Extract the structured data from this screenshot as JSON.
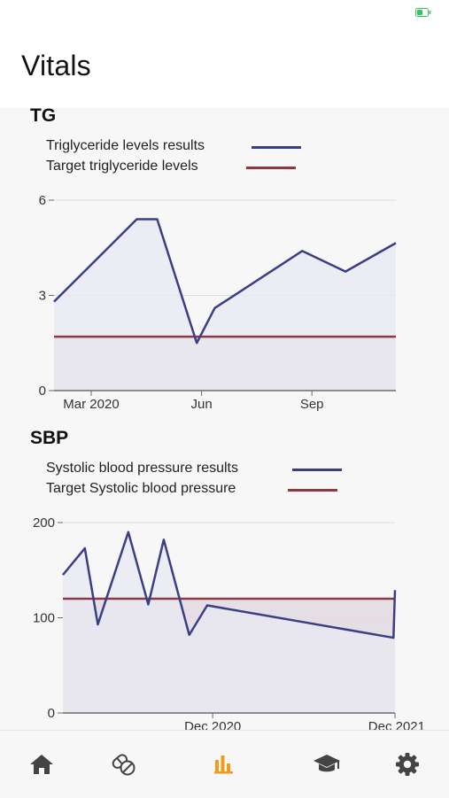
{
  "header": {
    "title": "Vitals"
  },
  "status_bar": {
    "battery_color": "#34c759"
  },
  "colors": {
    "results_line": "#3a3f85",
    "results_fill": "#e8e9f3",
    "target_line": "#8b3a44",
    "target_fill": "#e2dbe2",
    "axis": "#6b6b6b",
    "grid": "#dddddd",
    "nav_icon": "#444444",
    "nav_active": "#f39a1a"
  },
  "sections": [
    {
      "title": "TG",
      "legend": [
        {
          "label": "Triglyceride levels results",
          "color": "#3a3f85"
        },
        {
          "label": "Target triglyceride levels",
          "color": "#8b3a44"
        }
      ]
    },
    {
      "title": "SBP",
      "legend": [
        {
          "label": "Systolic blood pressure results",
          "color": "#3a3f85"
        },
        {
          "label": "Target Systolic blood pressure",
          "color": "#8b3a44"
        }
      ]
    }
  ],
  "chart_data": [
    {
      "type": "area",
      "title": "TG",
      "xlabel": "",
      "ylabel": "",
      "ylim": [
        0,
        6
      ],
      "y_ticks": [
        0,
        3,
        6
      ],
      "x_ticks": [
        {
          "label": "Mar 2020",
          "x": "2020-03-01"
        },
        {
          "label": "Jun",
          "x": "2020-06-01"
        },
        {
          "label": "Sep",
          "x": "2020-09-01"
        }
      ],
      "xlim": [
        "2020-01-30",
        "2020-11-10"
      ],
      "grid": true,
      "legend": "top-left",
      "series": [
        {
          "name": "Triglyceride levels results",
          "color": "#3a3f85",
          "points": [
            {
              "x": "2020-01-30",
              "y": 2.8
            },
            {
              "x": "2020-04-08",
              "y": 5.4
            },
            {
              "x": "2020-04-25",
              "y": 5.4
            },
            {
              "x": "2020-05-28",
              "y": 1.5
            },
            {
              "x": "2020-06-12",
              "y": 2.6
            },
            {
              "x": "2020-08-24",
              "y": 4.4
            },
            {
              "x": "2020-09-29",
              "y": 3.75
            },
            {
              "x": "2020-11-10",
              "y": 4.65
            }
          ]
        },
        {
          "name": "Target triglyceride levels",
          "color": "#8b3a44",
          "points": [
            {
              "x": "2020-01-30",
              "y": 1.7
            },
            {
              "x": "2020-11-10",
              "y": 1.7
            }
          ]
        }
      ]
    },
    {
      "type": "area",
      "title": "SBP",
      "xlabel": "",
      "ylabel": "",
      "ylim": [
        0,
        200
      ],
      "y_ticks": [
        0,
        100,
        200
      ],
      "x_ticks": [
        {
          "label": "Dec 2020",
          "x": "2020-12-01"
        },
        {
          "label": "Dec 2021",
          "x": "2021-12-01"
        }
      ],
      "xlim": [
        "2020-02-05",
        "2021-12-01"
      ],
      "grid": true,
      "legend": "top-left",
      "series": [
        {
          "name": "Systolic blood pressure results",
          "color": "#3a3f85",
          "points": [
            {
              "x": "2020-02-05",
              "y": 145
            },
            {
              "x": "2020-03-20",
              "y": 173
            },
            {
              "x": "2020-04-15",
              "y": 93
            },
            {
              "x": "2020-06-15",
              "y": 190
            },
            {
              "x": "2020-07-25",
              "y": 114
            },
            {
              "x": "2020-08-25",
              "y": 182
            },
            {
              "x": "2020-10-15",
              "y": 82
            },
            {
              "x": "2020-11-20",
              "y": 113
            },
            {
              "x": "2021-11-28",
              "y": 79
            },
            {
              "x": "2021-12-01",
              "y": 129
            }
          ]
        },
        {
          "name": "Target Systolic blood pressure",
          "color": "#8b3a44",
          "points": [
            {
              "x": "2020-02-05",
              "y": 120
            },
            {
              "x": "2021-12-01",
              "y": 120
            }
          ]
        }
      ]
    }
  ],
  "nav": [
    {
      "icon": "home-icon",
      "active": false
    },
    {
      "icon": "pills-icon",
      "active": false
    },
    {
      "icon": "bar-chart-icon",
      "active": true
    },
    {
      "icon": "graduation-cap-icon",
      "active": false
    },
    {
      "icon": "gear-icon",
      "active": false
    }
  ]
}
